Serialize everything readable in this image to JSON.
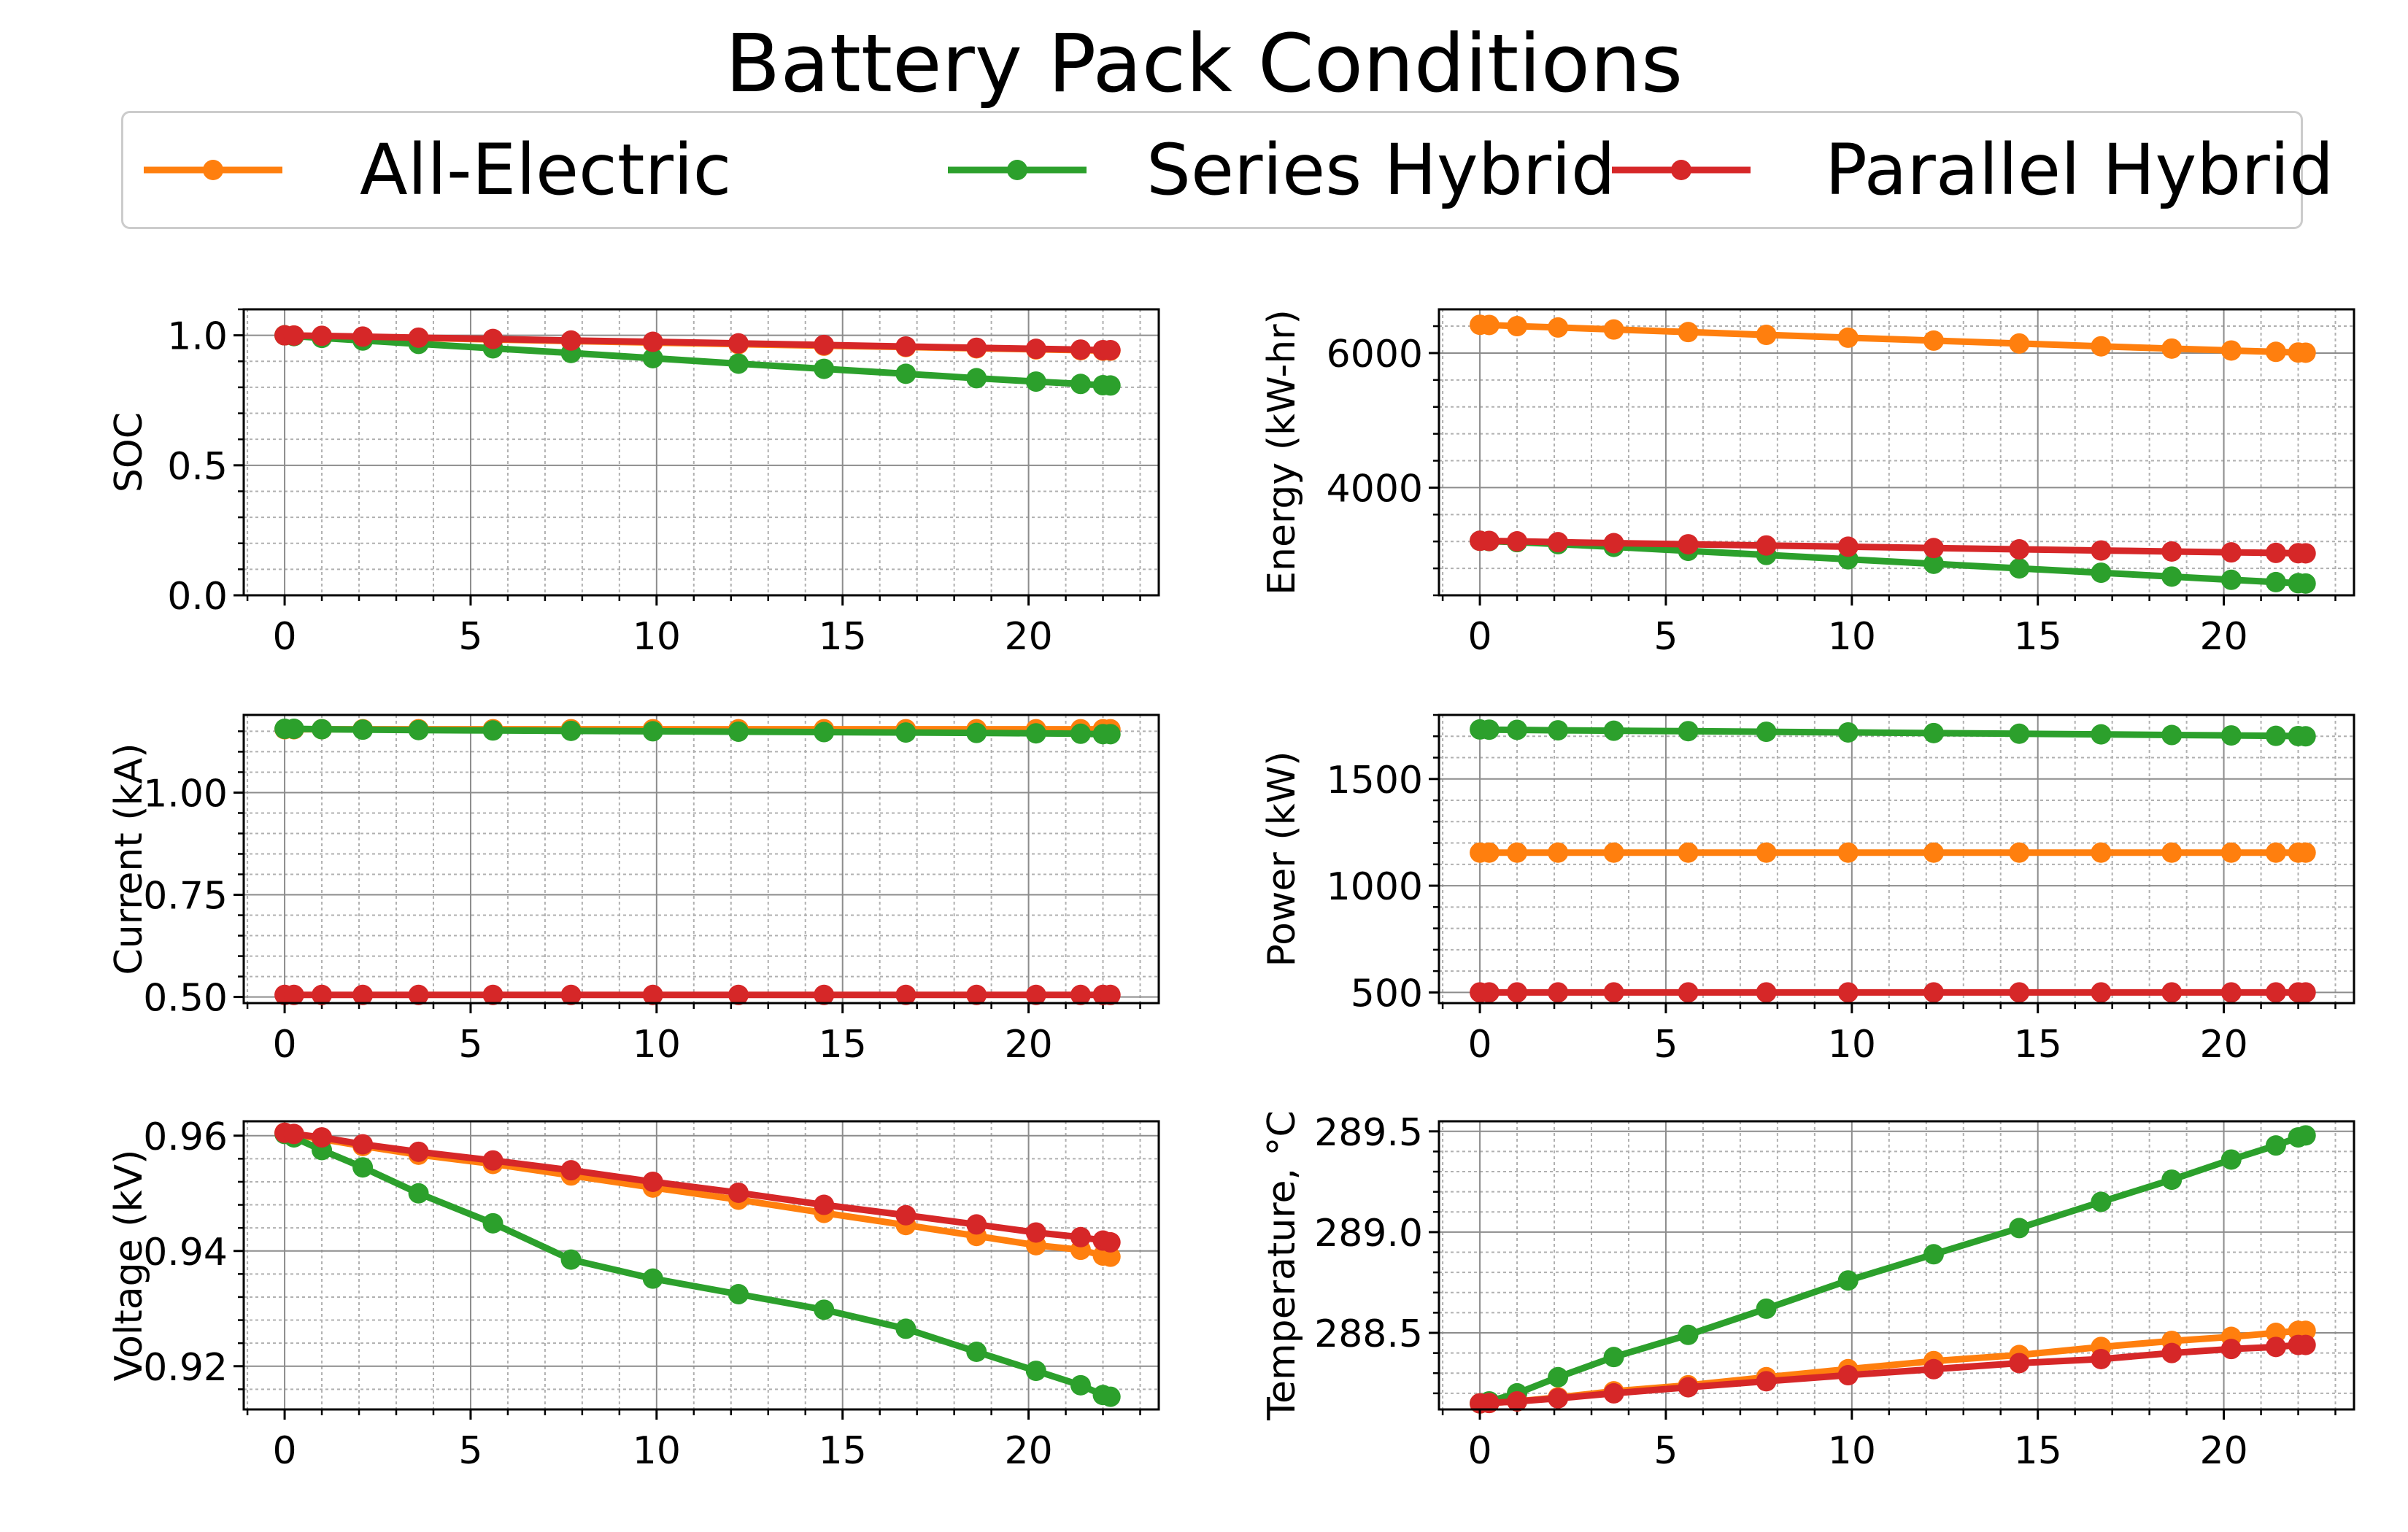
{
  "title": "Battery Pack Conditions",
  "legend": {
    "placement": "top-center",
    "entries": [
      {
        "label": "All-Electric",
        "color": "#ff7f0e"
      },
      {
        "label": "Series Hybrid",
        "color": "#2ca02c"
      },
      {
        "label": "Parallel Hybrid",
        "color": "#d62728"
      }
    ]
  },
  "chart_data": [
    {
      "type": "line",
      "xlabel": "",
      "ylabel": "SOC",
      "xlim": [
        -1.1,
        23.5
      ],
      "ylim": [
        0.0,
        1.1
      ],
      "xticks": [
        0,
        5,
        10,
        15,
        20
      ],
      "yticks": [
        0.0,
        0.5,
        1.0
      ],
      "ytick_labels": [
        "0.0",
        "0.5",
        "1.0"
      ],
      "grid": true,
      "x": [
        0,
        0.25,
        1,
        2.1,
        3.6,
        5.6,
        7.7,
        9.9,
        12.2,
        14.5,
        16.7,
        18.6,
        20.2,
        21.4,
        22,
        22.2
      ],
      "series": [
        {
          "name": "All-Electric",
          "color": "#ff7f0e",
          "values": [
            1.0,
            0.999,
            0.997,
            0.994,
            0.99,
            0.984,
            0.978,
            0.972,
            0.966,
            0.96,
            0.955,
            0.95,
            0.946,
            0.943,
            0.941,
            0.941
          ]
        },
        {
          "name": "Series Hybrid",
          "color": "#2ca02c",
          "values": [
            1.0,
            0.997,
            0.99,
            0.98,
            0.967,
            0.95,
            0.932,
            0.912,
            0.891,
            0.871,
            0.852,
            0.835,
            0.822,
            0.813,
            0.808,
            0.807
          ]
        },
        {
          "name": "Parallel Hybrid",
          "color": "#d62728",
          "values": [
            1.0,
            0.999,
            0.998,
            0.995,
            0.991,
            0.986,
            0.98,
            0.975,
            0.969,
            0.963,
            0.957,
            0.952,
            0.948,
            0.945,
            0.943,
            0.943
          ]
        }
      ]
    },
    {
      "type": "line",
      "xlabel": "",
      "ylabel": "Energy (kW-hr)",
      "xlim": [
        -1.1,
        23.5
      ],
      "ylim": [
        2400,
        6650
      ],
      "xticks": [
        0,
        5,
        10,
        15,
        20
      ],
      "yticks": [
        4000,
        6000
      ],
      "ytick_labels": [
        "4000",
        "6000"
      ],
      "grid": true,
      "x": [
        0,
        0.25,
        1,
        2.1,
        3.6,
        5.6,
        7.7,
        9.9,
        12.2,
        14.5,
        16.7,
        18.6,
        20.2,
        21.4,
        22,
        22.2
      ],
      "series": [
        {
          "name": "All-Electric",
          "color": "#ff7f0e",
          "values": [
            6420,
            6417,
            6400,
            6380,
            6350,
            6312,
            6270,
            6228,
            6185,
            6142,
            6100,
            6066,
            6038,
            6018,
            6008,
            6005
          ]
        },
        {
          "name": "Series Hybrid",
          "color": "#2ca02c",
          "values": [
            3210,
            3205,
            3190,
            3160,
            3120,
            3060,
            3000,
            2935,
            2868,
            2800,
            2735,
            2678,
            2630,
            2596,
            2580,
            2575
          ]
        },
        {
          "name": "Parallel Hybrid",
          "color": "#d62728",
          "values": [
            3210,
            3208,
            3202,
            3190,
            3175,
            3158,
            3140,
            3122,
            3102,
            3083,
            3066,
            3051,
            3038,
            3030,
            3025,
            3024
          ]
        }
      ]
    },
    {
      "type": "line",
      "xlabel": "",
      "ylabel": "Current (kA)",
      "xlim": [
        -1.1,
        23.5
      ],
      "ylim": [
        0.485,
        1.19
      ],
      "xticks": [
        0,
        5,
        10,
        15,
        20
      ],
      "yticks": [
        0.5,
        0.75,
        1.0
      ],
      "ytick_labels": [
        "0.50",
        "0.75",
        "1.00"
      ],
      "grid": true,
      "x": [
        0,
        0.25,
        1,
        2.1,
        3.6,
        5.6,
        7.7,
        9.9,
        12.2,
        14.5,
        16.7,
        18.6,
        20.2,
        21.4,
        22,
        22.2
      ],
      "series": [
        {
          "name": "All-Electric",
          "color": "#ff7f0e",
          "values": [
            1.155,
            1.155,
            1.155,
            1.155,
            1.155,
            1.155,
            1.155,
            1.155,
            1.155,
            1.155,
            1.155,
            1.155,
            1.155,
            1.155,
            1.155,
            1.155
          ]
        },
        {
          "name": "Series Hybrid",
          "color": "#2ca02c",
          "values": [
            1.156,
            1.156,
            1.155,
            1.154,
            1.153,
            1.152,
            1.151,
            1.15,
            1.149,
            1.148,
            1.147,
            1.146,
            1.145,
            1.144,
            1.143,
            1.143
          ]
        },
        {
          "name": "Parallel Hybrid",
          "color": "#d62728",
          "values": [
            0.505,
            0.505,
            0.505,
            0.505,
            0.505,
            0.505,
            0.505,
            0.505,
            0.505,
            0.505,
            0.505,
            0.505,
            0.505,
            0.505,
            0.505,
            0.505
          ]
        }
      ]
    },
    {
      "type": "line",
      "xlabel": "",
      "ylabel": "Power (kW)",
      "xlim": [
        -1.1,
        23.5
      ],
      "ylim": [
        450,
        1800
      ],
      "xticks": [
        0,
        5,
        10,
        15,
        20
      ],
      "yticks": [
        500,
        1000,
        1500
      ],
      "ytick_labels": [
        "500",
        "1000",
        "1500"
      ],
      "grid": true,
      "x": [
        0,
        0.25,
        1,
        2.1,
        3.6,
        5.6,
        7.7,
        9.9,
        12.2,
        14.5,
        16.7,
        18.6,
        20.2,
        21.4,
        22,
        22.2
      ],
      "series": [
        {
          "name": "All-Electric",
          "color": "#ff7f0e",
          "values": [
            1155,
            1155,
            1155,
            1155,
            1155,
            1155,
            1155,
            1155,
            1155,
            1155,
            1155,
            1155,
            1155,
            1155,
            1155,
            1155
          ]
        },
        {
          "name": "Series Hybrid",
          "color": "#2ca02c",
          "values": [
            1732,
            1731,
            1730,
            1728,
            1726,
            1724,
            1721,
            1718,
            1715,
            1712,
            1709,
            1706,
            1704,
            1702,
            1701,
            1700
          ]
        },
        {
          "name": "Parallel Hybrid",
          "color": "#d62728",
          "values": [
            500,
            500,
            500,
            500,
            500,
            500,
            500,
            500,
            500,
            500,
            500,
            500,
            500,
            500,
            500,
            500
          ]
        }
      ]
    },
    {
      "type": "line",
      "xlabel": "",
      "ylabel": "Voltage (kV)",
      "xlim": [
        -1.1,
        23.5
      ],
      "ylim": [
        0.9125,
        0.9625
      ],
      "xticks": [
        0,
        5,
        10,
        15,
        20
      ],
      "yticks": [
        0.92,
        0.94,
        0.96
      ],
      "ytick_labels": [
        "0.92",
        "0.94",
        "0.96"
      ],
      "grid": true,
      "x": [
        0,
        0.25,
        1,
        2.1,
        3.6,
        5.6,
        7.7,
        9.9,
        12.2,
        14.5,
        16.7,
        18.6,
        20.2,
        21.4,
        22,
        22.2
      ],
      "series": [
        {
          "name": "All-Electric",
          "color": "#ff7f0e",
          "values": [
            0.9605,
            0.9602,
            0.9594,
            0.9582,
            0.9567,
            0.9551,
            0.9531,
            0.951,
            0.9489,
            0.9466,
            0.9445,
            0.9426,
            0.941,
            0.9402,
            0.9392,
            0.939
          ]
        },
        {
          "name": "Series Hybrid",
          "color": "#2ca02c",
          "values": [
            0.9603,
            0.9597,
            0.9575,
            0.9545,
            0.95,
            0.9448,
            0.9385,
            0.9352,
            0.9325,
            0.9298,
            0.9265,
            0.9225,
            0.9192,
            0.9167,
            0.915,
            0.9147
          ]
        },
        {
          "name": "Parallel Hybrid",
          "color": "#d62728",
          "values": [
            0.9605,
            0.9603,
            0.9597,
            0.9585,
            0.9572,
            0.9557,
            0.954,
            0.952,
            0.9501,
            0.948,
            0.9462,
            0.9446,
            0.9432,
            0.9424,
            0.9418,
            0.9415
          ]
        }
      ]
    },
    {
      "type": "line",
      "xlabel": "",
      "ylabel": "Temperature, °C",
      "xlim": [
        -1.1,
        23.5
      ],
      "ylim": [
        288.12,
        289.55
      ],
      "xticks": [
        0,
        5,
        10,
        15,
        20
      ],
      "yticks": [
        288.5,
        289.0,
        289.5
      ],
      "ytick_labels": [
        "288.5",
        "289.0",
        "289.5"
      ],
      "grid": true,
      "x": [
        0,
        0.25,
        1,
        2.1,
        3.6,
        5.6,
        7.7,
        9.9,
        12.2,
        14.5,
        16.7,
        18.6,
        20.2,
        21.4,
        22,
        22.2
      ],
      "series": [
        {
          "name": "All-Electric",
          "color": "#ff7f0e",
          "values": [
            288.15,
            288.152,
            288.16,
            288.18,
            288.21,
            288.24,
            288.28,
            288.32,
            288.36,
            288.39,
            288.43,
            288.46,
            288.48,
            288.5,
            288.51,
            288.51
          ]
        },
        {
          "name": "Series Hybrid",
          "color": "#2ca02c",
          "values": [
            288.15,
            288.16,
            288.2,
            288.28,
            288.38,
            288.49,
            288.62,
            288.76,
            288.89,
            289.02,
            289.15,
            289.26,
            289.36,
            289.43,
            289.47,
            289.48
          ]
        },
        {
          "name": "Parallel Hybrid",
          "color": "#d62728",
          "values": [
            288.15,
            288.152,
            288.16,
            288.175,
            288.2,
            288.23,
            288.26,
            288.29,
            288.32,
            288.35,
            288.37,
            288.4,
            288.42,
            288.43,
            288.44,
            288.44
          ]
        }
      ]
    }
  ]
}
